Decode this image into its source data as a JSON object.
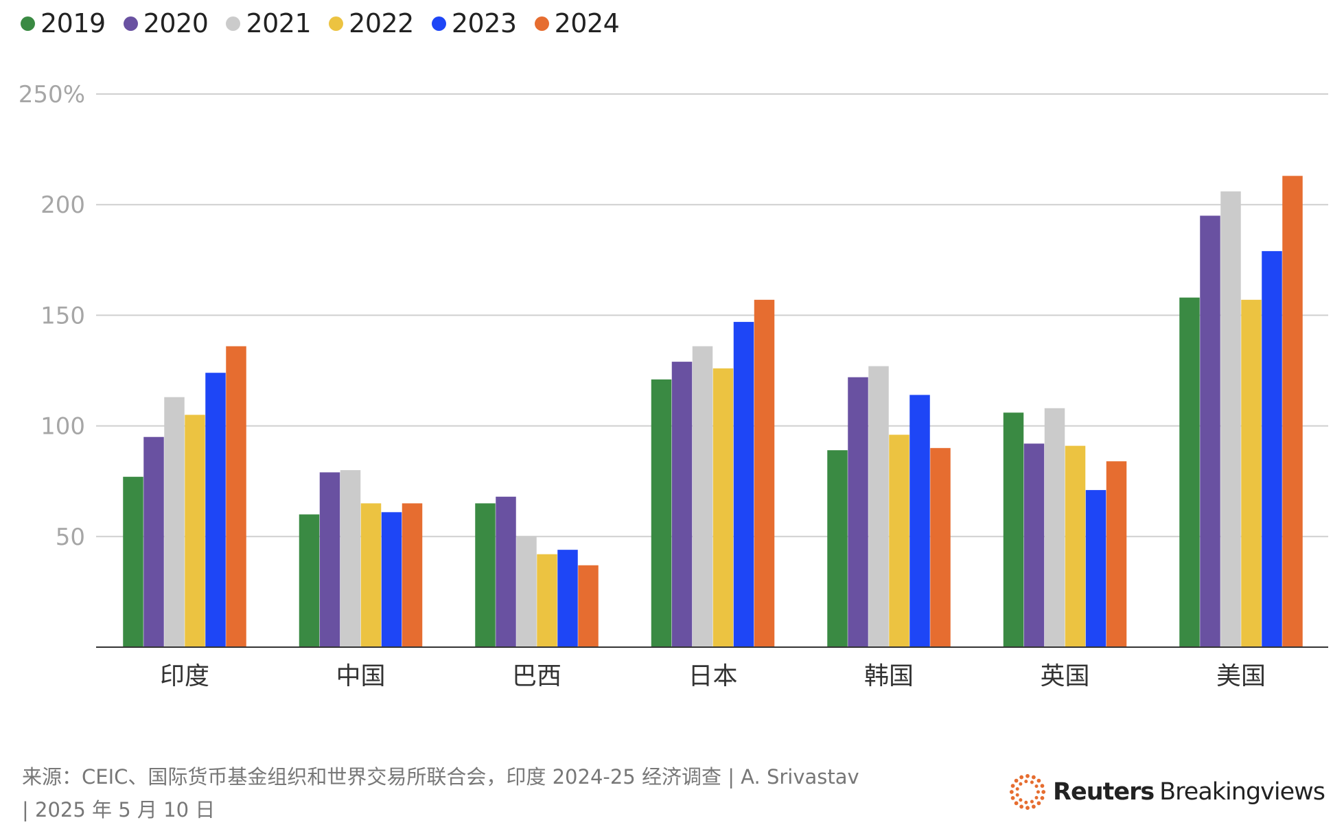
{
  "chart_data": {
    "type": "bar",
    "title": "",
    "xlabel": "",
    "ylabel": "",
    "categories": [
      "印度",
      "中国",
      "巴西",
      "日本",
      "韩国",
      "英国",
      "美国"
    ],
    "series": [
      {
        "name": "2019",
        "color": "#3a8a43",
        "values": [
          77,
          60,
          65,
          121,
          89,
          106,
          158
        ]
      },
      {
        "name": "2020",
        "color": "#6951a1",
        "values": [
          95,
          79,
          68,
          129,
          122,
          92,
          195
        ]
      },
      {
        "name": "2021",
        "color": "#cbcbcb",
        "values": [
          113,
          80,
          50,
          136,
          127,
          108,
          206
        ]
      },
      {
        "name": "2022",
        "color": "#ecc341",
        "values": [
          105,
          65,
          42,
          126,
          96,
          91,
          157
        ]
      },
      {
        "name": "2023",
        "color": "#1e46f6",
        "values": [
          124,
          61,
          44,
          147,
          114,
          71,
          179
        ]
      },
      {
        "name": "2024",
        "color": "#e66d30",
        "values": [
          136,
          65,
          37,
          157,
          90,
          84,
          213
        ]
      }
    ],
    "ylim": [
      0,
      250
    ],
    "yticks": [
      50,
      100,
      150,
      200,
      250
    ],
    "ytick_labels": [
      "50",
      "100",
      "150",
      "200",
      "250%"
    ],
    "grid": true,
    "legend_position": "top-left"
  },
  "footer": {
    "source_line1": "来源：CEIC、国际货币基金组织和世界交易所联合会，印度 2024-25 经济调查 | A. Srivastav",
    "source_line2": "| 2025 年 5 月 10 日"
  },
  "brand": {
    "name_bold": "Reuters",
    "name_rest": "Breakingviews",
    "accent_color": "#e66d30"
  }
}
